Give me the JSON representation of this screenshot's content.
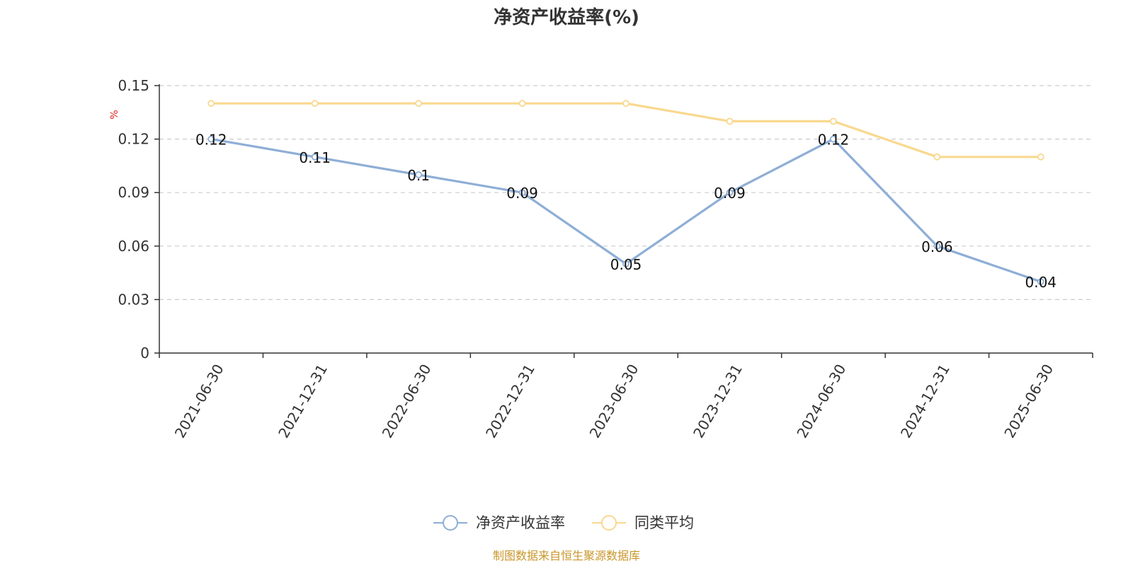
{
  "chart_data": {
    "type": "line",
    "title": "净资产收益率(%)",
    "ylabel": "%",
    "categories": [
      "2021-06-30",
      "2021-12-31",
      "2022-06-30",
      "2022-12-31",
      "2023-06-30",
      "2023-12-31",
      "2024-06-30",
      "2024-12-31",
      "2025-06-30"
    ],
    "ylim": [
      0,
      0.15
    ],
    "yticks": [
      "0",
      "0.03",
      "0.06",
      "0.09",
      "0.12",
      "0.15"
    ],
    "grid": true,
    "legend_position": "bottom",
    "series": [
      {
        "name": "净资产收益率",
        "color": "#8eaed6",
        "values": [
          0.12,
          0.11,
          0.1,
          0.09,
          0.05,
          0.09,
          0.12,
          0.06,
          0.04
        ],
        "labels": [
          "0.12",
          "0.11",
          "0.1",
          "0.09",
          "0.05",
          "0.09",
          "0.12",
          "0.06",
          "0.04"
        ]
      },
      {
        "name": "同类平均",
        "color": "#f9d88f",
        "values": [
          0.14,
          0.14,
          0.14,
          0.14,
          0.14,
          0.13,
          0.13,
          0.11,
          0.11
        ]
      }
    ]
  },
  "source_note": "制图数据来自恒生聚源数据库"
}
